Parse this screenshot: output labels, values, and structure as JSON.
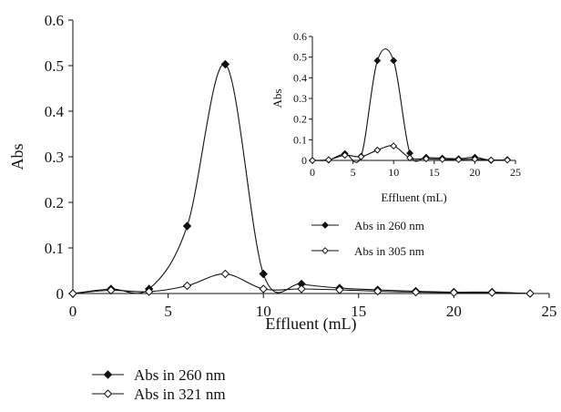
{
  "chart_data": [
    {
      "type": "line",
      "title": "",
      "xlabel": "Effluent (mL)",
      "ylabel": "Abs",
      "xlim": [
        0,
        25
      ],
      "ylim": [
        0,
        0.6
      ],
      "x_ticks": [
        "0",
        "5",
        "10",
        "15",
        "20",
        "25"
      ],
      "y_ticks": [
        "0",
        "0.1",
        "0.2",
        "0.3",
        "0.4",
        "0.5",
        "0.6"
      ],
      "grid": false,
      "legend_position": "bottom-left-outside",
      "series": [
        {
          "name": "Abs in 260 nm",
          "marker": "filled-diamond",
          "x": [
            0,
            2,
            4,
            6,
            8,
            10,
            12,
            14,
            16,
            18,
            20,
            22,
            24
          ],
          "y": [
            0,
            0.01,
            0.01,
            0.148,
            0.503,
            0.043,
            0.021,
            0.012,
            0.008,
            0.005,
            0.003,
            0.003,
            0
          ]
        },
        {
          "name": "Abs in 321 nm",
          "marker": "open-diamond",
          "x": [
            0,
            2,
            4,
            6,
            8,
            10,
            12,
            14,
            16,
            18,
            20,
            22,
            24
          ],
          "y": [
            0,
            0.007,
            0.004,
            0.017,
            0.043,
            0.01,
            0.01,
            0.008,
            0.005,
            0.003,
            0.002,
            0.002,
            0
          ]
        }
      ]
    },
    {
      "type": "line",
      "title": "",
      "xlabel": "Effluent (mL)",
      "ylabel": "Abs",
      "xlim": [
        0,
        25
      ],
      "ylim": [
        0,
        0.6
      ],
      "x_ticks": [
        "0",
        "5",
        "10",
        "15",
        "20",
        "25"
      ],
      "y_ticks": [
        "0",
        "0.1",
        "0.2",
        "0.3",
        "0.4",
        "0.5",
        "0.6"
      ],
      "grid": false,
      "legend_position": "below-chart",
      "series": [
        {
          "name": "Abs in 260 nm",
          "marker": "filled-diamond",
          "x": [
            0,
            2,
            4,
            6,
            8,
            10,
            12,
            14,
            16,
            18,
            20,
            22,
            24
          ],
          "y": [
            0,
            0.002,
            0.033,
            0.02,
            0.483,
            0.483,
            0.035,
            0.015,
            0.011,
            0.008,
            0.015,
            0,
            0.004
          ]
        },
        {
          "name": "Abs in 305 nm",
          "marker": "open-diamond",
          "x": [
            0,
            2,
            4,
            6,
            8,
            10,
            12,
            14,
            16,
            18,
            20,
            22,
            24
          ],
          "y": [
            0,
            0.003,
            0.025,
            0.018,
            0.05,
            0.07,
            0.012,
            0.008,
            0.005,
            0.004,
            0.006,
            0.002,
            0.002
          ]
        }
      ]
    }
  ]
}
